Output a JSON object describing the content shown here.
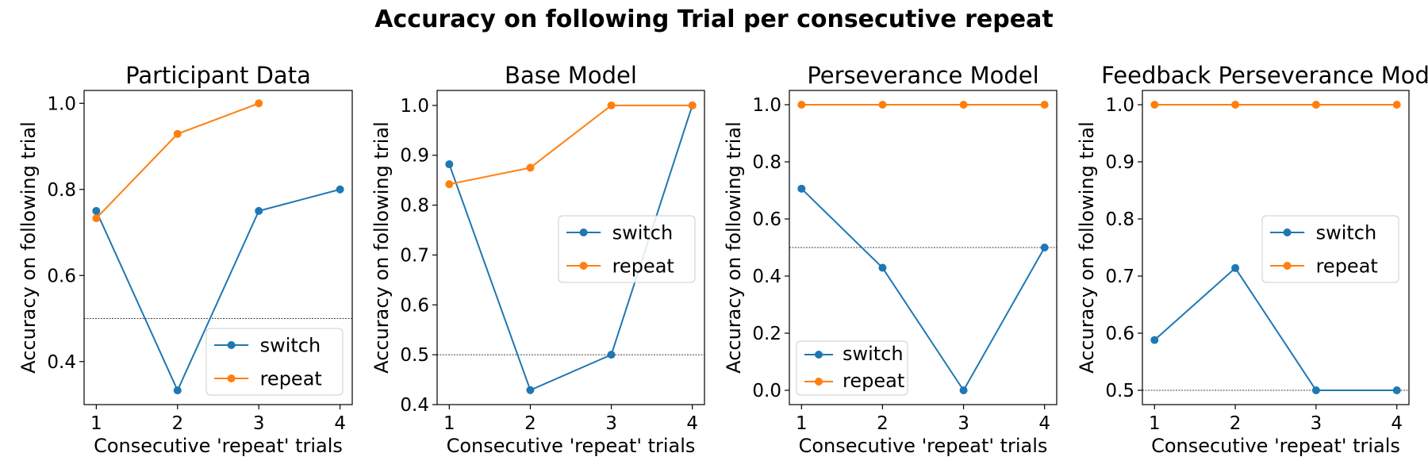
{
  "figure": {
    "title": "Accuracy on following Trial per consecutive repeat"
  },
  "chart_data": [
    {
      "type": "line",
      "title": "Participant Data",
      "xlabel": "Consecutive 'repeat' trials",
      "ylabel": "Accuracy on following trial",
      "x": [
        1,
        2,
        3,
        4
      ],
      "xlim": [
        0.85,
        4.15
      ],
      "ylim": [
        0.3,
        1.03
      ],
      "yticks": [
        0.4,
        0.6,
        0.8,
        1.0
      ],
      "ytick_labels": [
        "0.4",
        "0.6",
        "0.8",
        "1.0"
      ],
      "reference_line": 0.5,
      "legend": "lower-right",
      "series": [
        {
          "name": "switch",
          "color": "#1f77b4",
          "values": [
            0.75,
            0.333,
            0.75,
            0.8
          ]
        },
        {
          "name": "repeat",
          "color": "#ff7f0e",
          "values": [
            0.733,
            0.929,
            1.0,
            null
          ]
        }
      ]
    },
    {
      "type": "line",
      "title": "Base Model",
      "xlabel": "Consecutive 'repeat' trials",
      "ylabel": "Accuracy on following trial",
      "x": [
        1,
        2,
        3,
        4
      ],
      "xlim": [
        0.85,
        4.15
      ],
      "ylim": [
        0.4,
        1.03
      ],
      "yticks": [
        0.4,
        0.5,
        0.6,
        0.7,
        0.8,
        0.9,
        1.0
      ],
      "ytick_labels": [
        "0.4",
        "0.5",
        "0.6",
        "0.7",
        "0.8",
        "0.9",
        "1.0"
      ],
      "reference_line": 0.5,
      "legend": "center-right",
      "series": [
        {
          "name": "switch",
          "color": "#1f77b4",
          "values": [
            0.882,
            0.429,
            0.5,
            1.0
          ]
        },
        {
          "name": "repeat",
          "color": "#ff7f0e",
          "values": [
            0.842,
            0.875,
            1.0,
            1.0
          ]
        }
      ]
    },
    {
      "type": "line",
      "title": "Perseverance Model",
      "xlabel": "Consecutive 'repeat' trials",
      "ylabel": "Accuracy on following trial",
      "x": [
        1,
        2,
        3,
        4
      ],
      "xlim": [
        0.85,
        4.15
      ],
      "ylim": [
        -0.05,
        1.05
      ],
      "yticks": [
        0.0,
        0.2,
        0.4,
        0.6,
        0.8,
        1.0
      ],
      "ytick_labels": [
        "0.0",
        "0.2",
        "0.4",
        "0.6",
        "0.8",
        "1.0"
      ],
      "reference_line": 0.5,
      "legend": "lower-left",
      "series": [
        {
          "name": "switch",
          "color": "#1f77b4",
          "values": [
            0.706,
            0.429,
            0.0,
            0.5
          ]
        },
        {
          "name": "repeat",
          "color": "#ff7f0e",
          "values": [
            1.0,
            1.0,
            1.0,
            1.0
          ]
        }
      ]
    },
    {
      "type": "line",
      "title": "Feedback Perseverance Model",
      "xlabel": "Consecutive 'repeat' trials",
      "ylabel": "Accuracy on following trial",
      "x": [
        1,
        2,
        3,
        4
      ],
      "xlim": [
        0.85,
        4.15
      ],
      "ylim": [
        0.475,
        1.025
      ],
      "yticks": [
        0.5,
        0.6,
        0.7,
        0.8,
        0.9,
        1.0
      ],
      "ytick_labels": [
        "0.5",
        "0.6",
        "0.7",
        "0.8",
        "0.9",
        "1.0"
      ],
      "reference_line": 0.5,
      "legend": "center-right",
      "series": [
        {
          "name": "switch",
          "color": "#1f77b4",
          "values": [
            0.588,
            0.714,
            0.5,
            0.5
          ]
        },
        {
          "name": "repeat",
          "color": "#ff7f0e",
          "values": [
            1.0,
            1.0,
            1.0,
            1.0
          ]
        }
      ]
    }
  ]
}
